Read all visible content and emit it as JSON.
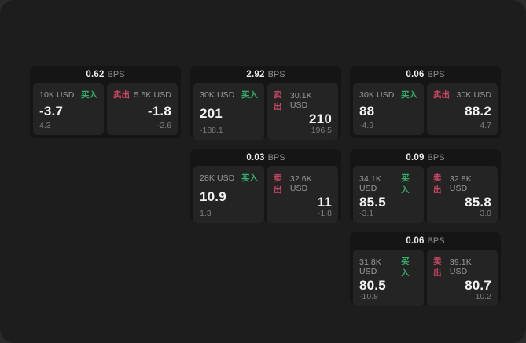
{
  "colors": {
    "buy_green": "#35b06c",
    "sell_red": "#cf4766"
  },
  "labels": {
    "bps_unit": "BPS",
    "buy": "买入",
    "sell": "卖出"
  },
  "cards": [
    {
      "bps_value": "0.62",
      "bps_unit": "BPS",
      "buy": {
        "amount": "10K USD",
        "side_label": "买入",
        "value": "-3.7",
        "delta": "4.3"
      },
      "sell": {
        "side_label": "卖出",
        "amount": "5.5K USD",
        "value": "-1.8",
        "delta": "-2.6"
      }
    },
    {
      "bps_value": "2.92",
      "bps_unit": "BPS",
      "buy": {
        "amount": "30K USD",
        "side_label": "买入",
        "value": "201",
        "delta": "-188.1"
      },
      "sell": {
        "side_label": "卖出",
        "amount": "30.1K USD",
        "value": "210",
        "delta": "196.5"
      }
    },
    {
      "bps_value": "0.06",
      "bps_unit": "BPS",
      "buy": {
        "amount": "30K USD",
        "side_label": "买入",
        "value": "88",
        "delta": "-4.9"
      },
      "sell": {
        "side_label": "卖出",
        "amount": "30K USD",
        "value": "88.2",
        "delta": "4.7"
      }
    },
    {
      "bps_value": "0.03",
      "bps_unit": "BPS",
      "buy": {
        "amount": "28K USD",
        "side_label": "买入",
        "value": "10.9",
        "delta": "1.3"
      },
      "sell": {
        "side_label": "卖出",
        "amount": "32.6K USD",
        "value": "11",
        "delta": "-1.8"
      }
    },
    {
      "bps_value": "0.09",
      "bps_unit": "BPS",
      "buy": {
        "amount": "34.1K USD",
        "side_label": "买入",
        "value": "85.5",
        "delta": "-3.1"
      },
      "sell": {
        "side_label": "卖出",
        "amount": "32.8K USD",
        "value": "85.8",
        "delta": "3.0"
      }
    },
    {
      "bps_value": "0.06",
      "bps_unit": "BPS",
      "buy": {
        "amount": "31.8K USD",
        "side_label": "买入",
        "value": "80.5",
        "delta": "-10.8"
      },
      "sell": {
        "side_label": "卖出",
        "amount": "39.1K USD",
        "value": "80.7",
        "delta": "10.2"
      }
    }
  ]
}
